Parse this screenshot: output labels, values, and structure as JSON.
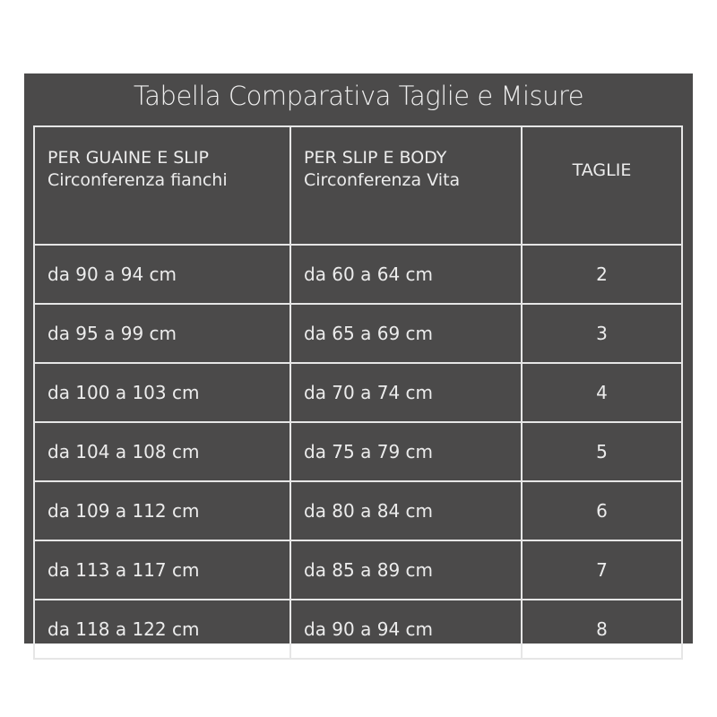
{
  "title": "Tabella Comparativa Taglie e Misure",
  "headers": [
    {
      "line1": "PER GUAINE E SLIP",
      "line2": "Circonferenza fianchi"
    },
    {
      "line1": "PER SLIP E BODY",
      "line2": "Circonferenza Vita"
    },
    {
      "line1": "TAGLIE",
      "line2": ""
    }
  ],
  "rows": [
    {
      "hips": "da 90 a 94 cm",
      "waist": "da 60 a 64 cm",
      "size": "2"
    },
    {
      "hips": "da 95 a 99 cm",
      "waist": "da 65 a 69 cm",
      "size": "3"
    },
    {
      "hips": "da 100 a 103 cm",
      "waist": "da 70 a 74 cm",
      "size": "4"
    },
    {
      "hips": "da 104 a 108 cm",
      "waist": "da 75 a 79 cm",
      "size": "5"
    },
    {
      "hips": "da 109 a 112 cm",
      "waist": "da 80 a 84 cm",
      "size": "6"
    },
    {
      "hips": "da 113 a 117 cm",
      "waist": "da 85 a 89 cm",
      "size": "7"
    },
    {
      "hips": "da 118 a 122 cm",
      "waist": "da 90 a 94 cm",
      "size": "8"
    }
  ],
  "colors": {
    "panel": "#4b4a4a",
    "text": "#ececec"
  }
}
